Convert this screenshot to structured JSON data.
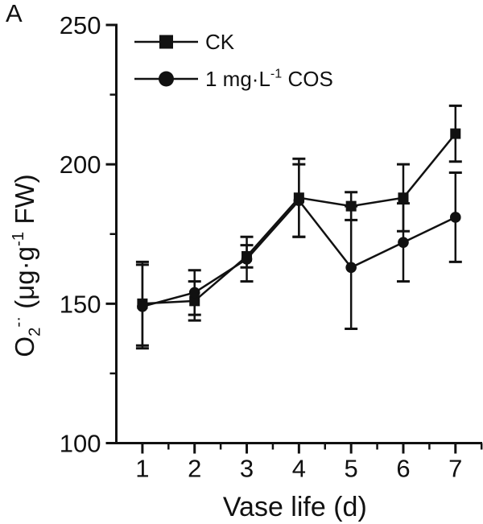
{
  "panel_label": "A",
  "chart_data": {
    "type": "line",
    "title": "",
    "xlabel": "Vase life (d)",
    "ylabel": "O₂⁻· (μg·g⁻¹ FW)",
    "ylabel_rich": [
      {
        "t": "O"
      },
      {
        "t": "2",
        "v": "sub"
      },
      {
        "t": "-·",
        "v": "sup"
      },
      {
        "t": " (μg·g"
      },
      {
        "t": "-1",
        "v": "sup"
      },
      {
        "t": " FW)"
      }
    ],
    "x": [
      1,
      2,
      3,
      4,
      5,
      6,
      7
    ],
    "xlim": [
      0.5,
      7.5
    ],
    "ylim": [
      100,
      250
    ],
    "x_major_ticks": [
      1,
      2,
      3,
      4,
      5,
      6,
      7
    ],
    "x_minor_ticks": [
      1.5,
      2.5,
      3.5,
      4.5,
      5.5,
      6.5,
      7.5
    ],
    "y_major_ticks": [
      100,
      150,
      200,
      250
    ],
    "y_minor_ticks": [
      125,
      175,
      225
    ],
    "grid": false,
    "legend_position": "top-left-inside",
    "line_color": "#111111",
    "series": [
      {
        "name": "CK",
        "name_rich": [
          {
            "t": "CK"
          }
        ],
        "marker": "square",
        "values": [
          150,
          151,
          167,
          188,
          185,
          188,
          211
        ],
        "errors": [
          15,
          7,
          4,
          14,
          5,
          12,
          10
        ]
      },
      {
        "name": "1 mg·L⁻¹ COS",
        "name_rich": [
          {
            "t": "1 mg·L"
          },
          {
            "t": "-1",
            "v": "sup"
          },
          {
            "t": " COS"
          }
        ],
        "marker": "circle",
        "values": [
          149,
          154,
          166,
          187,
          163,
          172,
          181
        ],
        "errors": [
          15,
          8,
          8,
          13,
          22,
          14,
          16
        ]
      }
    ]
  }
}
